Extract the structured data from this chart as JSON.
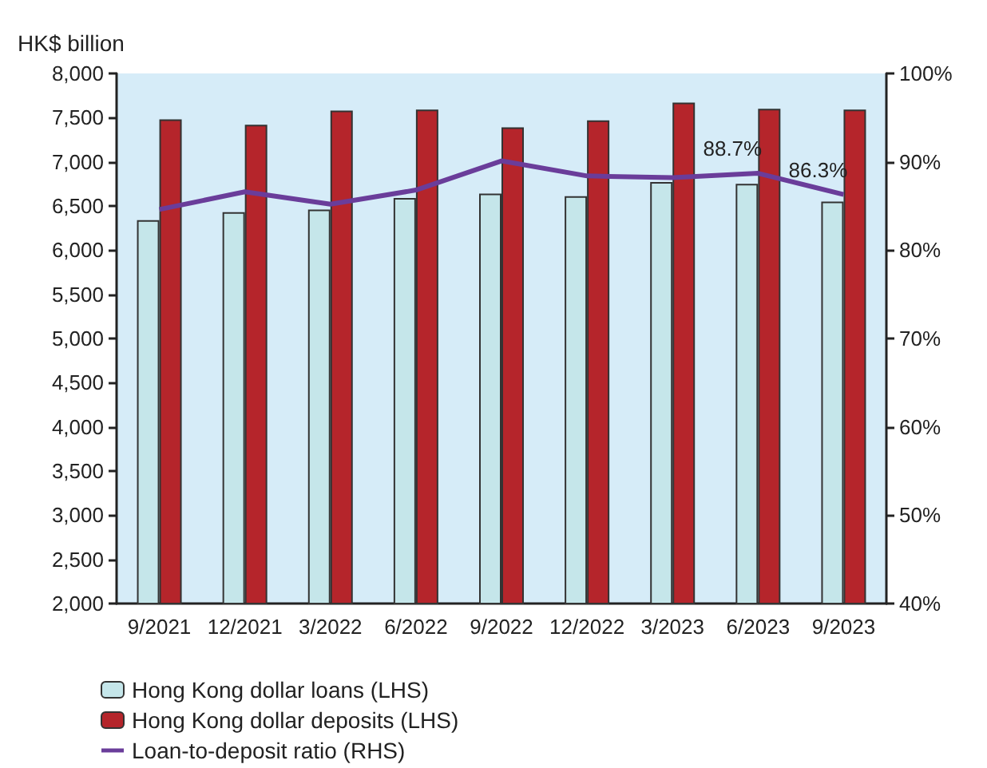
{
  "chart_data": {
    "type": "bar",
    "ylabel": "HK$ billion",
    "categories": [
      "9/2021",
      "12/2021",
      "3/2022",
      "6/2022",
      "9/2022",
      "12/2022",
      "3/2023",
      "6/2023",
      "9/2023"
    ],
    "series": [
      {
        "name": "Hong Kong dollar loans (LHS)",
        "color": "#c5e6ea",
        "values": [
          6340,
          6430,
          6460,
          6590,
          6640,
          6610,
          6770,
          6750,
          6550
        ]
      },
      {
        "name": "Hong Kong dollar deposits (LHS)",
        "color": "#b5252b",
        "values": [
          7480,
          7420,
          7580,
          7590,
          7390,
          7470,
          7670,
          7600,
          7590
        ]
      },
      {
        "name": "Loan-to-deposit ratio (RHS)",
        "type": "line",
        "axis": "y2",
        "color": "#6a3d9a",
        "values": [
          84.6,
          86.6,
          85.2,
          86.8,
          90.1,
          88.4,
          88.2,
          88.7,
          86.3
        ],
        "value_labels": [
          null,
          null,
          null,
          null,
          null,
          null,
          null,
          "88.7%",
          "86.3%"
        ]
      }
    ],
    "ylim": [
      2000,
      8000
    ],
    "yticks": [
      {
        "value": 2000,
        "label": "2,000"
      },
      {
        "value": 2500,
        "label": "2,500"
      },
      {
        "value": 3000,
        "label": "3,000"
      },
      {
        "value": 3500,
        "label": "3,500"
      },
      {
        "value": 4000,
        "label": "4,000"
      },
      {
        "value": 4500,
        "label": "4,500"
      },
      {
        "value": 5000,
        "label": "5,000"
      },
      {
        "value": 5500,
        "label": "5,500"
      },
      {
        "value": 6000,
        "label": "6,000"
      },
      {
        "value": 6500,
        "label": "6,500"
      },
      {
        "value": 7000,
        "label": "7,000"
      },
      {
        "value": 7500,
        "label": "7,500"
      },
      {
        "value": 8000,
        "label": "8,000"
      }
    ],
    "y2lim": [
      40,
      100
    ],
    "y2ticks": [
      {
        "value": 40,
        "label": "40%"
      },
      {
        "value": 50,
        "label": "50%"
      },
      {
        "value": 60,
        "label": "60%"
      },
      {
        "value": 70,
        "label": "70%"
      },
      {
        "value": 80,
        "label": "80%"
      },
      {
        "value": 90,
        "label": "90%"
      },
      {
        "value": 100,
        "label": "100%"
      }
    ],
    "grid": false,
    "legend": "bottom",
    "marker": "none",
    "line_style": "solid"
  }
}
